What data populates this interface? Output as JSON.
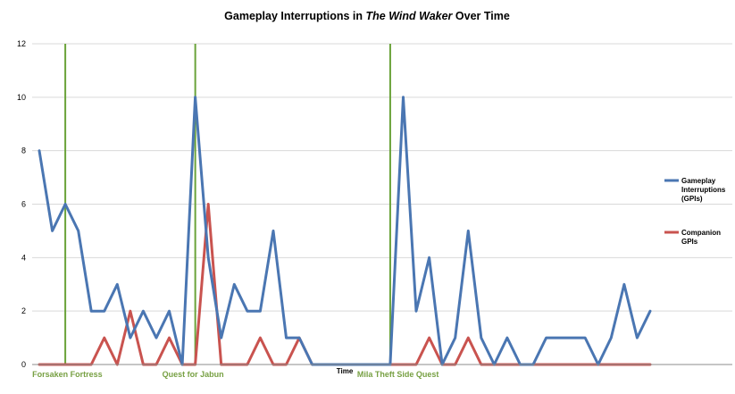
{
  "chart_data": {
    "type": "line",
    "title_prefix": "Gameplay Interruptions in ",
    "title_italic": "The Wind Waker",
    "title_suffix": " Over Time",
    "xlabel": "Time",
    "ylabel": "",
    "ylim": [
      0,
      12
    ],
    "yticks": [
      0,
      2,
      4,
      6,
      8,
      10,
      12
    ],
    "grid": true,
    "legend_position": "right",
    "series": [
      {
        "name_lines": [
          "Gameplay",
          "Interruptions",
          "(GPIs)"
        ],
        "color": "#4a76b2",
        "values": [
          8,
          5,
          6,
          5,
          2,
          2,
          3,
          1,
          2,
          1,
          2,
          0,
          10,
          4,
          1,
          3,
          2,
          2,
          5,
          1,
          1,
          0,
          0,
          0,
          0,
          0,
          0,
          0,
          10,
          2,
          4,
          0,
          1,
          5,
          1,
          0,
          1,
          0,
          0,
          1,
          1,
          1,
          1,
          0,
          1,
          3,
          1,
          2
        ]
      },
      {
        "name_lines": [
          "Companion",
          "GPIs"
        ],
        "color": "#c9534f",
        "values": [
          0,
          0,
          0,
          0,
          0,
          1,
          0,
          2,
          0,
          0,
          1,
          0,
          0,
          6,
          0,
          0,
          0,
          1,
          0,
          0,
          1,
          0,
          0,
          0,
          0,
          0,
          0,
          0,
          0,
          0,
          1,
          0,
          0,
          1,
          0,
          0,
          0,
          0,
          0,
          0,
          0,
          0,
          0,
          0,
          0,
          0,
          0,
          0
        ]
      }
    ],
    "event_markers": [
      {
        "index": 2,
        "label": "Forsaken Fortress",
        "color": "#6aa33a"
      },
      {
        "index": 12,
        "label": "Quest for Jabun",
        "color": "#6aa33a"
      },
      {
        "index": 27,
        "label": "Mila Theft Side Quest",
        "color": "#6aa33a"
      }
    ]
  }
}
